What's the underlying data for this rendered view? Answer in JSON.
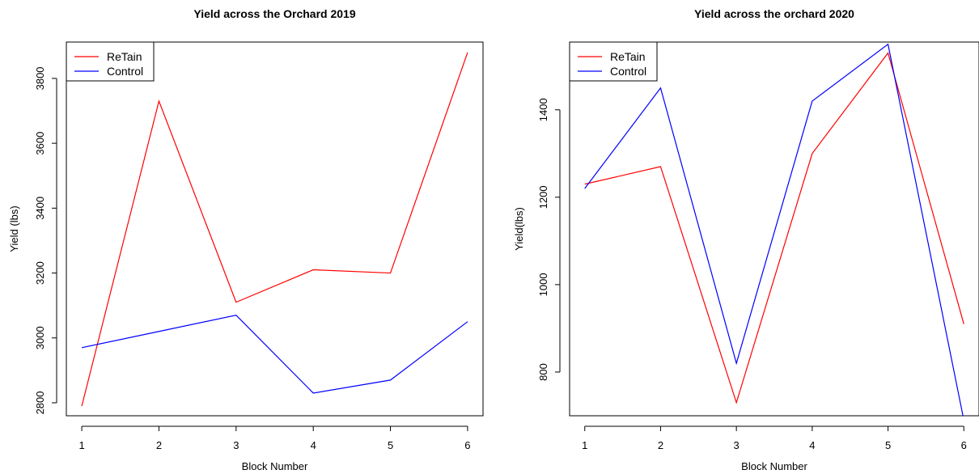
{
  "chart_data": [
    {
      "type": "line",
      "title": "Yield across the Orchard 2019",
      "xlabel": "Block Number",
      "ylabel": "Yield (lbs)",
      "x": [
        1,
        2,
        3,
        4,
        5,
        6
      ],
      "xlim": [
        0.8,
        6.2
      ],
      "ylim": [
        2760,
        3912
      ],
      "xticks": [
        "1",
        "2",
        "3",
        "4",
        "5",
        "6"
      ],
      "yticks": [
        2800,
        3000,
        3200,
        3400,
        3600,
        3800
      ],
      "grid": false,
      "legend_position": "top-left",
      "series": [
        {
          "name": "ReTain",
          "color": "#ff0000",
          "values": [
            2790,
            3730,
            3110,
            3210,
            3200,
            3880
          ]
        },
        {
          "name": "Control",
          "color": "#0000ff",
          "values": [
            2970,
            3020,
            3070,
            2830,
            2870,
            3050
          ]
        }
      ]
    },
    {
      "type": "line",
      "title": "Yield across the orchard 2020",
      "xlabel": "Block Number",
      "ylabel": "Yield(lbs)",
      "x": [
        1,
        2,
        3,
        4,
        5,
        6
      ],
      "xlim": [
        0.8,
        6.2
      ],
      "ylim": [
        700,
        1555
      ],
      "xticks": [
        "1",
        "2",
        "3",
        "4",
        "5",
        "6"
      ],
      "yticks": [
        800,
        1000,
        1200,
        1400
      ],
      "grid": false,
      "legend_position": "top-left",
      "series": [
        {
          "name": "ReTain",
          "color": "#ff0000",
          "values": [
            1230,
            1270,
            730,
            1300,
            1530,
            910
          ]
        },
        {
          "name": "Control",
          "color": "#0000ff",
          "values": [
            1220,
            1450,
            820,
            1420,
            1550,
            690
          ]
        }
      ]
    }
  ]
}
